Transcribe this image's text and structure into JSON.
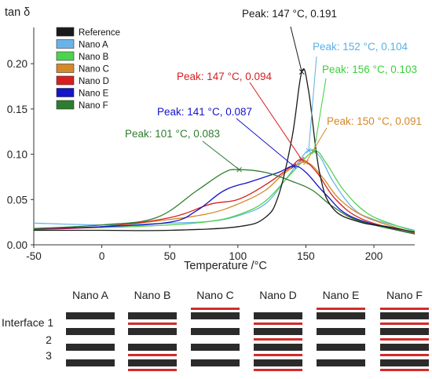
{
  "chart_data": {
    "type": "line",
    "ylabel": "tan δ",
    "xlabel": "Temperature /°C",
    "xlim": [
      -50,
      230
    ],
    "ylim": [
      0,
      0.24
    ],
    "xticks": [
      -50,
      0,
      50,
      100,
      150,
      200
    ],
    "xtick_labels": [
      "-50",
      "0",
      "50",
      "100",
      "150",
      "200"
    ],
    "yticks": [
      0.0,
      0.05,
      0.1,
      0.15,
      0.2
    ],
    "ytick_labels": [
      "0.00",
      "0.05",
      "0.10",
      "0.15",
      "0.20"
    ],
    "grid": false,
    "legend_position": "top-left",
    "series": [
      {
        "name": "Reference",
        "color": "#1a1a1a",
        "points": [
          [
            -50,
            0.016
          ],
          [
            0,
            0.016
          ],
          [
            50,
            0.016
          ],
          [
            100,
            0.02
          ],
          [
            120,
            0.03
          ],
          [
            130,
            0.055
          ],
          [
            140,
            0.12
          ],
          [
            147,
            0.191
          ],
          [
            152,
            0.17
          ],
          [
            160,
            0.08
          ],
          [
            170,
            0.04
          ],
          [
            190,
            0.025
          ],
          [
            210,
            0.02
          ],
          [
            230,
            0.014
          ]
        ]
      },
      {
        "name": "Nano A",
        "color": "#6ab3e8",
        "points": [
          [
            -50,
            0.024
          ],
          [
            0,
            0.022
          ],
          [
            50,
            0.024
          ],
          [
            80,
            0.026
          ],
          [
            100,
            0.032
          ],
          [
            120,
            0.045
          ],
          [
            135,
            0.072
          ],
          [
            145,
            0.092
          ],
          [
            152,
            0.104
          ],
          [
            160,
            0.098
          ],
          [
            170,
            0.07
          ],
          [
            185,
            0.04
          ],
          [
            200,
            0.028
          ],
          [
            230,
            0.016
          ]
        ]
      },
      {
        "name": "Nano B",
        "color": "#4fd24f",
        "points": [
          [
            -50,
            0.018
          ],
          [
            0,
            0.019
          ],
          [
            50,
            0.022
          ],
          [
            80,
            0.026
          ],
          [
            100,
            0.033
          ],
          [
            120,
            0.048
          ],
          [
            140,
            0.08
          ],
          [
            156,
            0.103
          ],
          [
            165,
            0.09
          ],
          [
            178,
            0.06
          ],
          [
            195,
            0.035
          ],
          [
            215,
            0.022
          ],
          [
            230,
            0.015
          ]
        ]
      },
      {
        "name": "Nano C",
        "color": "#d5882a",
        "points": [
          [
            -50,
            0.017
          ],
          [
            0,
            0.02
          ],
          [
            50,
            0.028
          ],
          [
            80,
            0.035
          ],
          [
            100,
            0.045
          ],
          [
            120,
            0.06
          ],
          [
            135,
            0.08
          ],
          [
            150,
            0.091
          ],
          [
            162,
            0.075
          ],
          [
            175,
            0.05
          ],
          [
            195,
            0.03
          ],
          [
            230,
            0.013
          ]
        ]
      },
      {
        "name": "Nano D",
        "color": "#d62020",
        "points": [
          [
            -50,
            0.017
          ],
          [
            0,
            0.02
          ],
          [
            50,
            0.03
          ],
          [
            80,
            0.045
          ],
          [
            100,
            0.05
          ],
          [
            120,
            0.066
          ],
          [
            138,
            0.085
          ],
          [
            147,
            0.094
          ],
          [
            158,
            0.08
          ],
          [
            172,
            0.05
          ],
          [
            192,
            0.028
          ],
          [
            230,
            0.012
          ]
        ]
      },
      {
        "name": "Nano E",
        "color": "#1414c8",
        "points": [
          [
            -50,
            0.018
          ],
          [
            0,
            0.02
          ],
          [
            50,
            0.025
          ],
          [
            70,
            0.038
          ],
          [
            90,
            0.06
          ],
          [
            110,
            0.07
          ],
          [
            130,
            0.08
          ],
          [
            141,
            0.087
          ],
          [
            150,
            0.08
          ],
          [
            165,
            0.055
          ],
          [
            185,
            0.03
          ],
          [
            230,
            0.012
          ]
        ]
      },
      {
        "name": "Nano F",
        "color": "#2e7d2e",
        "points": [
          [
            -50,
            0.018
          ],
          [
            0,
            0.022
          ],
          [
            40,
            0.03
          ],
          [
            70,
            0.06
          ],
          [
            90,
            0.08
          ],
          [
            101,
            0.083
          ],
          [
            120,
            0.08
          ],
          [
            140,
            0.07
          ],
          [
            155,
            0.06
          ],
          [
            170,
            0.042
          ],
          [
            190,
            0.026
          ],
          [
            230,
            0.012
          ]
        ]
      }
    ],
    "annotations": [
      {
        "text": "Peak: 147 °C, 0.191",
        "color": "#1a1a1a",
        "x": 147,
        "y": 0.191
      },
      {
        "text": "Peak: 152 °C, 0.104",
        "color": "#5ab0e6",
        "x": 152,
        "y": 0.104
      },
      {
        "text": "Peak: 147 °C, 0.094",
        "color": "#d62020",
        "x": 147,
        "y": 0.094
      },
      {
        "text": "Peak: 156 °C, 0.103",
        "color": "#3ccf3c",
        "x": 156,
        "y": 0.103
      },
      {
        "text": "Peak: 141 °C, 0.087",
        "color": "#1414c8",
        "x": 141,
        "y": 0.087
      },
      {
        "text": "Peak: 150 °C, 0.091",
        "color": "#d5882a",
        "x": 150,
        "y": 0.091
      },
      {
        "text": "Peak: 101 °C, 0.083",
        "color": "#2e7d2e",
        "x": 101,
        "y": 0.083
      }
    ]
  },
  "schematic": {
    "columns": [
      {
        "name": "Nano A",
        "red_after": [],
        "red_before": []
      },
      {
        "name": "Nano B",
        "red_after": [
          1,
          3
        ],
        "red_before": []
      },
      {
        "name": "Nano C",
        "red_after": [],
        "red_before": [
          1
        ]
      },
      {
        "name": "Nano D",
        "red_after": [
          1,
          2,
          3
        ],
        "red_before": []
      },
      {
        "name": "Nano E",
        "red_after": [],
        "red_before": [
          1
        ]
      },
      {
        "name": "Nano F",
        "red_after": [
          1,
          2,
          3
        ],
        "red_before": [
          1
        ]
      }
    ],
    "row_labels": [
      "Interface 1",
      "2",
      "3"
    ],
    "bar_color": "#2b2b2b",
    "red_color": "#d42a2a"
  }
}
